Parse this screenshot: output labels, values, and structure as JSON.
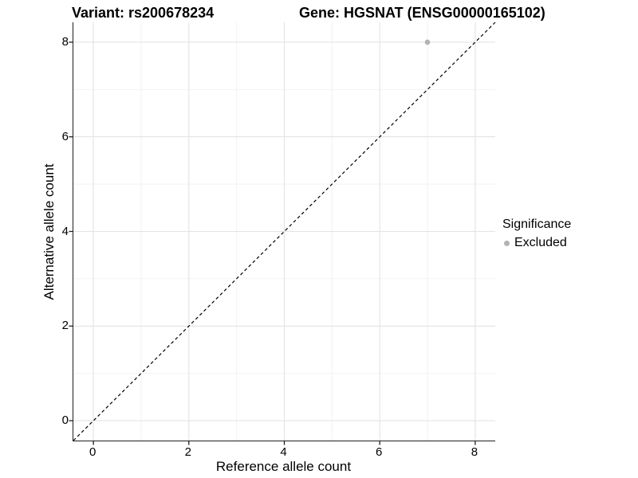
{
  "header": {
    "variant_title": "Variant: rs200678234",
    "gene_title": "Gene: HGSNAT (ENSG00000165102)"
  },
  "chart_data": {
    "type": "scatter",
    "title": "Variant: rs200678234 — Gene: HGSNAT (ENSG00000165102)",
    "xlabel": "Reference allele count",
    "ylabel": "Alternative allele count",
    "xlim": [
      -0.42,
      8.42
    ],
    "ylim": [
      -0.42,
      8.42
    ],
    "xticks": [
      0,
      2,
      4,
      6,
      8
    ],
    "yticks": [
      0,
      2,
      4,
      6,
      8
    ],
    "minor_xticks": [
      1,
      3,
      5,
      7
    ],
    "minor_yticks": [
      1,
      3,
      5,
      7
    ],
    "grid": "major+minor",
    "reference_line": {
      "kind": "identity y=x",
      "style": "dashed",
      "color": "#000000"
    },
    "series": [
      {
        "name": "Excluded",
        "color": "#b3b3b3",
        "point_radius": 3.3,
        "points": [
          {
            "x": 7,
            "y": 8
          }
        ]
      }
    ],
    "legend": {
      "title": "Significance",
      "position": "right",
      "items": [
        {
          "label": "Excluded",
          "color": "#b3b3b3"
        }
      ]
    }
  },
  "colors": {
    "background": "#ffffff",
    "grid_major": "#e3e3e3",
    "grid_minor": "#f2f2f2",
    "axis_line": "#1f1f1f",
    "tick_mark": "#1f1f1f",
    "text": "#000000"
  }
}
